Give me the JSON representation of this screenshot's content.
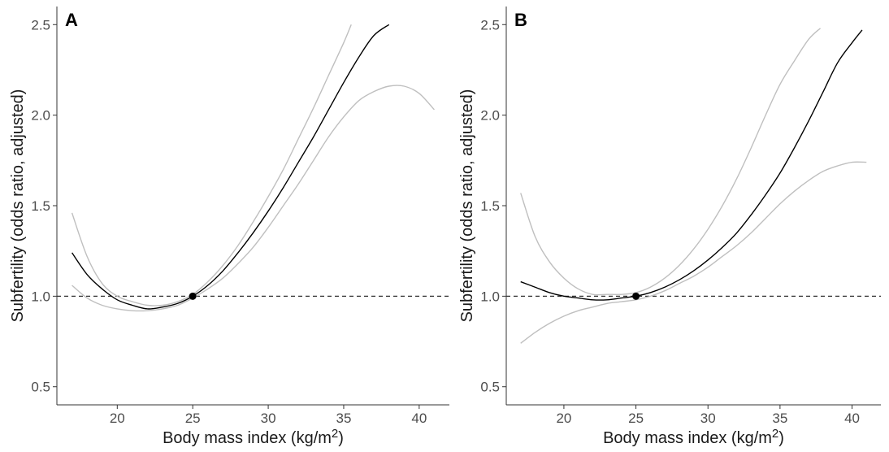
{
  "chart_data": [
    {
      "type": "line",
      "panel_label": "A",
      "xlabel": "Body mass index (kg/m",
      "xlabel_sup": "2",
      "xlabel_close": ")",
      "ylabel": "Subfertility (odds ratio, adjusted)",
      "xlim": [
        16,
        42
      ],
      "ylim": [
        0.4,
        2.6
      ],
      "xticks": [
        20,
        25,
        30,
        35,
        40
      ],
      "yticks": [
        0.5,
        1.0,
        1.5,
        2.0,
        2.5
      ],
      "ytick_labels": [
        "0.5",
        "1.0",
        "1.5",
        "2.0",
        "2.5"
      ],
      "reference_line": 1.0,
      "reference_point": {
        "x": 25,
        "y": 1.0
      },
      "grid": false,
      "colors": {
        "estimate": "#000000",
        "ci": "#bfbfbf",
        "reference": "#333333"
      },
      "series": [
        {
          "role": "estimate",
          "x": [
            17,
            18,
            19,
            20,
            21,
            22,
            23,
            24,
            25,
            26,
            27,
            28,
            29,
            30,
            31,
            32,
            33,
            34,
            35,
            36,
            37,
            38
          ],
          "y": [
            1.24,
            1.12,
            1.04,
            0.98,
            0.95,
            0.93,
            0.94,
            0.96,
            1.0,
            1.06,
            1.14,
            1.24,
            1.35,
            1.47,
            1.6,
            1.74,
            1.88,
            2.03,
            2.18,
            2.32,
            2.44,
            2.5
          ]
        },
        {
          "role": "ci_upper",
          "x": [
            17,
            18,
            19,
            20,
            21,
            22,
            23,
            24,
            25,
            26,
            27,
            28,
            29,
            30,
            31,
            32,
            33,
            34,
            35,
            35.5
          ],
          "y": [
            1.46,
            1.22,
            1.07,
            1.0,
            0.97,
            0.95,
            0.95,
            0.97,
            1.01,
            1.08,
            1.17,
            1.28,
            1.41,
            1.55,
            1.7,
            1.87,
            2.04,
            2.22,
            2.4,
            2.5
          ]
        },
        {
          "role": "ci_lower",
          "x": [
            17,
            18,
            19,
            20,
            21,
            22,
            23,
            24,
            25,
            26,
            27,
            28,
            29,
            30,
            31,
            32,
            33,
            34,
            35,
            36,
            37,
            38,
            39,
            40,
            41
          ],
          "y": [
            1.06,
            0.99,
            0.95,
            0.93,
            0.92,
            0.92,
            0.93,
            0.95,
            0.99,
            1.04,
            1.1,
            1.18,
            1.27,
            1.38,
            1.5,
            1.62,
            1.75,
            1.88,
            1.99,
            2.08,
            2.13,
            2.16,
            2.16,
            2.12,
            2.03
          ]
        }
      ]
    },
    {
      "type": "line",
      "panel_label": "B",
      "xlabel": "Body mass index (kg/m",
      "xlabel_sup": "2",
      "xlabel_close": ")",
      "ylabel": "Subfertility (odds ratio, adjusted)",
      "xlim": [
        16,
        42
      ],
      "ylim": [
        0.4,
        2.6
      ],
      "xticks": [
        20,
        25,
        30,
        35,
        40
      ],
      "yticks": [
        0.5,
        1.0,
        1.5,
        2.0,
        2.5
      ],
      "ytick_labels": [
        "0.5",
        "1.0",
        "1.5",
        "2.0",
        "2.5"
      ],
      "reference_line": 1.0,
      "reference_point": {
        "x": 25,
        "y": 1.0
      },
      "grid": false,
      "colors": {
        "estimate": "#000000",
        "ci": "#bfbfbf",
        "reference": "#333333"
      },
      "series": [
        {
          "role": "estimate",
          "x": [
            17,
            18,
            19,
            20,
            21,
            22,
            23,
            24,
            25,
            26,
            27,
            28,
            29,
            30,
            31,
            32,
            33,
            34,
            35,
            36,
            37,
            38,
            39,
            40,
            40.7
          ],
          "y": [
            1.08,
            1.05,
            1.02,
            1.0,
            0.99,
            0.98,
            0.98,
            0.99,
            1.0,
            1.02,
            1.05,
            1.09,
            1.14,
            1.2,
            1.27,
            1.35,
            1.45,
            1.56,
            1.68,
            1.82,
            1.97,
            2.13,
            2.29,
            2.4,
            2.47
          ]
        },
        {
          "role": "ci_upper",
          "x": [
            17,
            18,
            19,
            20,
            21,
            22,
            23,
            24,
            25,
            26,
            27,
            28,
            29,
            30,
            31,
            32,
            33,
            34,
            35,
            36,
            37,
            37.8
          ],
          "y": [
            1.57,
            1.33,
            1.19,
            1.1,
            1.04,
            1.01,
            1.01,
            1.01,
            1.02,
            1.05,
            1.1,
            1.17,
            1.26,
            1.37,
            1.5,
            1.65,
            1.82,
            2.0,
            2.17,
            2.3,
            2.42,
            2.48
          ]
        },
        {
          "role": "ci_lower",
          "x": [
            17,
            18,
            19,
            20,
            21,
            22,
            23,
            24,
            25,
            26,
            27,
            28,
            29,
            30,
            31,
            32,
            33,
            34,
            35,
            36,
            37,
            38,
            39,
            40,
            41
          ],
          "y": [
            0.74,
            0.8,
            0.85,
            0.89,
            0.92,
            0.94,
            0.96,
            0.97,
            0.98,
            1.0,
            1.03,
            1.07,
            1.11,
            1.16,
            1.22,
            1.28,
            1.35,
            1.43,
            1.51,
            1.58,
            1.64,
            1.69,
            1.72,
            1.74,
            1.74
          ]
        }
      ]
    }
  ]
}
